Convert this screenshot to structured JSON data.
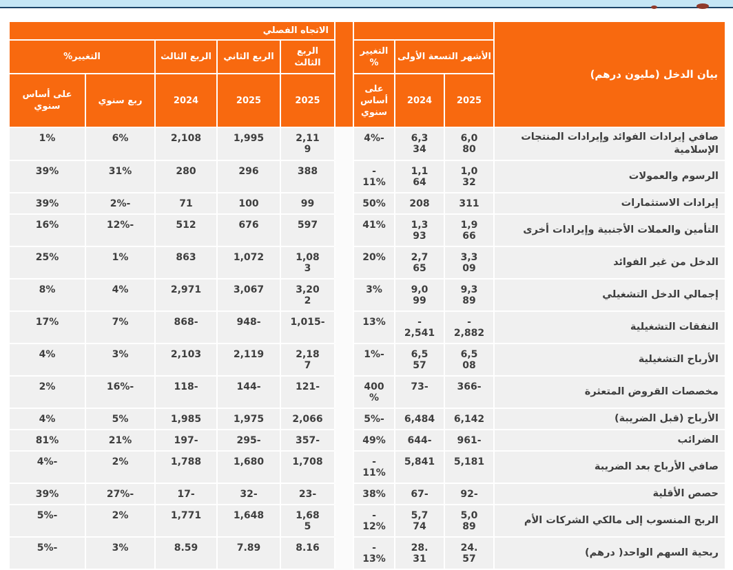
{
  "page": {
    "background": "#FFFFFF",
    "top_strip_color": "#C5E6F5",
    "top_rule_color": "#1C4467",
    "accent_orange": "#F8690F",
    "cell_gray": "#F0F0F0",
    "text_dark": "#3E3E3E",
    "clipped_mark_color": "#8F3A2B"
  },
  "header": {
    "income_statement_label": "بيان الدخل (مليون درهم)",
    "nine_months_group": "الأشهر التسعة الأولى",
    "change_pct_stacked": "التغيير\n%",
    "yoy_basis_stacked": "على\nأساس\nسنوي",
    "quarterly_trend": "الاتجاه الفصلي",
    "q3_stacked": "الربع\nالثالث",
    "q2_label": "الربع الثاني",
    "q3_label": "الربع الثالث",
    "change_pct": "التغيير%",
    "qoq_label": "ربع سنوي",
    "yoy_label": "على أساس سنوي",
    "y2024": "2024",
    "y2025": "2025"
  },
  "columns": [
    "nine-months-2025",
    "nine-months-2024",
    "change-9m-yoy",
    "q3-2025",
    "q2-2025",
    "q3-2024",
    "change-qoq",
    "change-yoy"
  ],
  "rows": [
    {
      "label": "صافي إيرادات الفوائد وإيرادات المنتجات الإسلامية",
      "values": [
        "6,0\n80",
        "6,3\n34",
        "4%-",
        "2,11\n9",
        "1,995",
        "2,108",
        "6%",
        "1%"
      ]
    },
    {
      "label": "الرسوم والعمولات",
      "values": [
        "1,0\n32",
        "1,1\n64",
        "-\n11%",
        "388",
        "296",
        "280",
        "31%",
        "39%"
      ]
    },
    {
      "label": "إيرادات الاستثمارات",
      "values": [
        "311",
        "208",
        "50%",
        "99",
        "100",
        "71",
        "2%-",
        "39%"
      ]
    },
    {
      "label": "التأمين والعملات الأجنبية وإيرادات أخرى",
      "values": [
        "1,9\n66",
        "1,3\n93",
        "41%",
        "597",
        "676",
        "512",
        "12%-",
        "16%"
      ]
    },
    {
      "label": "الدخل من غير الفوائد",
      "values": [
        "3,3\n09",
        "2,7\n65",
        "20%",
        "1,08\n3",
        "1,072",
        "863",
        "1%",
        "25%"
      ]
    },
    {
      "label": "إجمالي الدخل التشغيلي",
      "values": [
        "9,3\n89",
        "9,0\n99",
        "3%",
        "3,20\n2",
        "3,067",
        "2,971",
        "4%",
        "8%"
      ]
    },
    {
      "label": "النفقات التشغيلية",
      "values": [
        "-\n2,882",
        "-\n2,541",
        "13%",
        "1,015-",
        "948-",
        "868-",
        "7%",
        "17%"
      ]
    },
    {
      "label": "الأرباح التشغيلية",
      "values": [
        "6,5\n08",
        "6,5\n57",
        "1%-",
        "2,18\n7",
        "2,119",
        "2,103",
        "3%",
        "4%"
      ]
    },
    {
      "label": "مخصصات القروض المتعثرة",
      "values": [
        "366-",
        "73-",
        "400\n%",
        "121-",
        "144-",
        "118-",
        "16%-",
        "2%"
      ]
    },
    {
      "label": "الأرباح (قبل الضريبة)",
      "values": [
        "6,142",
        "6,484",
        "5%-",
        "2,066",
        "1,975",
        "1,985",
        "5%",
        "4%"
      ]
    },
    {
      "label": "الضرائب",
      "values": [
        "961-",
        "644-",
        "49%",
        "357-",
        "295-",
        "197-",
        "21%",
        "81%"
      ]
    },
    {
      "label": "صافي الأرباح بعد الضريبة",
      "values": [
        "5,181",
        "5,841",
        "-\n11%",
        "1,708",
        "1,680",
        "1,788",
        "2%",
        "4%-"
      ]
    },
    {
      "label": "حصص الأقلية",
      "values": [
        "92-",
        "67-",
        "38%",
        "23-",
        "32-",
        "17-",
        "27%-",
        "39%"
      ]
    },
    {
      "label": "الربح المنسوب إلى مالكي الشركات الأم",
      "values": [
        "5,0\n89",
        "5,7\n74",
        "-\n12%",
        "1,68\n5",
        "1,648",
        "1,771",
        "2%",
        "5%-"
      ]
    },
    {
      "label": "ربحية السهم الواحد( درهم)",
      "values": [
        "24.\n57",
        "28.\n31",
        "-\n13%",
        "8.16",
        "7.89",
        "8.59",
        "3%",
        "5%-"
      ]
    }
  ]
}
